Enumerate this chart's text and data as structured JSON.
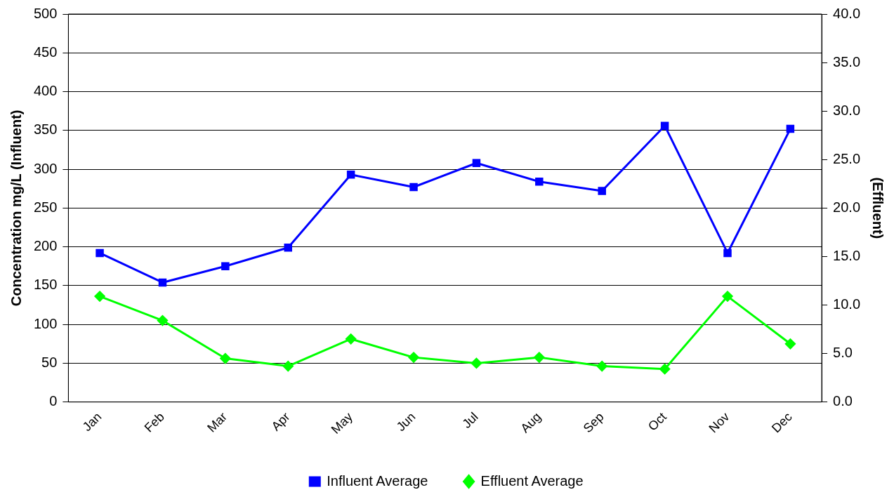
{
  "chart_data": {
    "type": "line",
    "categories": [
      "Jan",
      "Feb",
      "Mar",
      "Apr",
      "May",
      "Jun",
      "Jul",
      "Aug",
      "Sep",
      "Oct",
      "Nov",
      "Dec"
    ],
    "series": [
      {
        "name": "Influent Average",
        "color": "#0000ff",
        "marker": "square",
        "values": [
          192,
          154,
          175,
          199,
          293,
          277,
          308,
          284,
          272,
          356,
          192,
          352
        ]
      },
      {
        "name": "Effluent Average",
        "color": "#00ff00",
        "marker": "diamond",
        "axis": "y2",
        "values": [
          10.9,
          8.4,
          4.5,
          3.7,
          6.5,
          4.6,
          4.0,
          4.6,
          3.7,
          3.4,
          10.9,
          6.0
        ]
      }
    ],
    "ylabel": "Concentration mg/L (Influent)",
    "y2label": "(Effluent)",
    "ylim": [
      0,
      500
    ],
    "yticks": [
      0,
      50,
      100,
      150,
      200,
      250,
      300,
      350,
      400,
      450,
      500
    ],
    "y2lim": [
      0,
      40
    ],
    "y2ticks": [
      {
        "value": 0,
        "label": "0.0"
      },
      {
        "value": 5,
        "label": "5.0"
      },
      {
        "value": 10,
        "label": "10.0"
      },
      {
        "value": 15,
        "label": "15.0"
      },
      {
        "value": 20,
        "label": "20.0"
      },
      {
        "value": 25,
        "label": "25.0"
      },
      {
        "value": 30,
        "label": "30.0"
      },
      {
        "value": 35,
        "label": "35.0"
      },
      {
        "value": 40,
        "label": "40.0"
      }
    ],
    "grid": "y",
    "legend": "bottom",
    "line_style": "solid"
  }
}
